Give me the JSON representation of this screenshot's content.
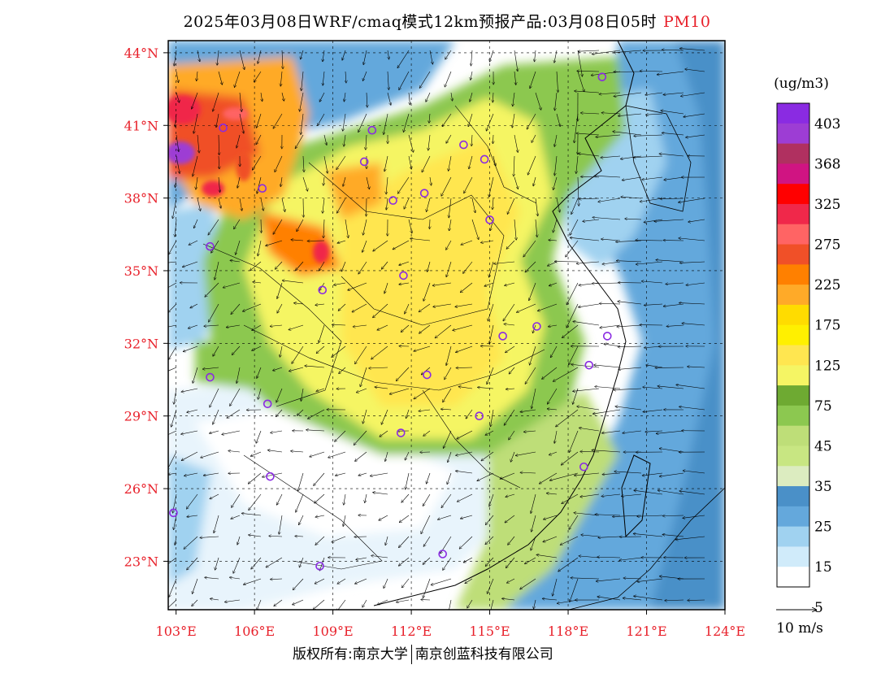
{
  "header": {
    "title": "2025年03月08日WRF/cmaq模式12km预报产品:03月08日05时",
    "product": "PM10"
  },
  "map": {
    "lat_labels": [
      "44°N",
      "41°N",
      "38°N",
      "35°N",
      "32°N",
      "29°N",
      "26°N",
      "23°N"
    ],
    "lon_labels": [
      "103°E",
      "106°E",
      "109°E",
      "112°E",
      "115°E",
      "118°E",
      "121°E",
      "124°E"
    ],
    "label_color": "#e8202a",
    "extent": {
      "lon": [
        102.7,
        124.0
      ],
      "lat": [
        21.0,
        44.5
      ]
    },
    "cities": [
      {
        "lon": 119.3,
        "lat": 43.0
      },
      {
        "lon": 104.8,
        "lat": 40.9
      },
      {
        "lon": 110.5,
        "lat": 40.8
      },
      {
        "lon": 114.0,
        "lat": 40.2
      },
      {
        "lon": 114.8,
        "lat": 39.6
      },
      {
        "lon": 110.2,
        "lat": 39.5
      },
      {
        "lon": 106.3,
        "lat": 38.4
      },
      {
        "lon": 112.5,
        "lat": 38.2
      },
      {
        "lon": 111.3,
        "lat": 37.9
      },
      {
        "lon": 115.0,
        "lat": 37.1
      },
      {
        "lon": 104.3,
        "lat": 36.0
      },
      {
        "lon": 111.7,
        "lat": 34.8
      },
      {
        "lon": 108.6,
        "lat": 34.2
      },
      {
        "lon": 116.8,
        "lat": 32.7
      },
      {
        "lon": 115.5,
        "lat": 32.3
      },
      {
        "lon": 119.5,
        "lat": 32.3
      },
      {
        "lon": 118.8,
        "lat": 31.1
      },
      {
        "lon": 104.3,
        "lat": 30.6
      },
      {
        "lon": 112.6,
        "lat": 30.7
      },
      {
        "lon": 106.5,
        "lat": 29.5
      },
      {
        "lon": 114.6,
        "lat": 29.0
      },
      {
        "lon": 111.6,
        "lat": 28.3
      },
      {
        "lon": 106.6,
        "lat": 26.5
      },
      {
        "lon": 118.6,
        "lat": 26.9
      },
      {
        "lon": 102.9,
        "lat": 25.0
      },
      {
        "lon": 113.2,
        "lat": 23.3
      },
      {
        "lon": 108.5,
        "lat": 22.8
      }
    ]
  },
  "legend": {
    "unit": "(ug/m3)",
    "colors": [
      "#8a2be2",
      "#9d3dd4",
      "#b03060",
      "#d01482",
      "#ff0000",
      "#f0284a",
      "#ff6464",
      "#f05028",
      "#ff8000",
      "#ffaa28",
      "#ffdc00",
      "#fff000",
      "#ffe650",
      "#f5f564",
      "#6eaa32",
      "#8cc850",
      "#bede78",
      "#c8e682",
      "#dcecc0",
      "#4a90c8",
      "#64a8dc",
      "#a0d2f0",
      "#d0ebfa",
      "#ffffff"
    ],
    "labels": [
      "403",
      "368",
      "325",
      "275",
      "225",
      "175",
      "125",
      "75",
      "45",
      "35",
      "25",
      "15",
      "5"
    ],
    "wind_ref": "10 m/s"
  },
  "footer": {
    "left": "版权所有:南京大学",
    "right": "南京创蓝科技有限公司"
  }
}
